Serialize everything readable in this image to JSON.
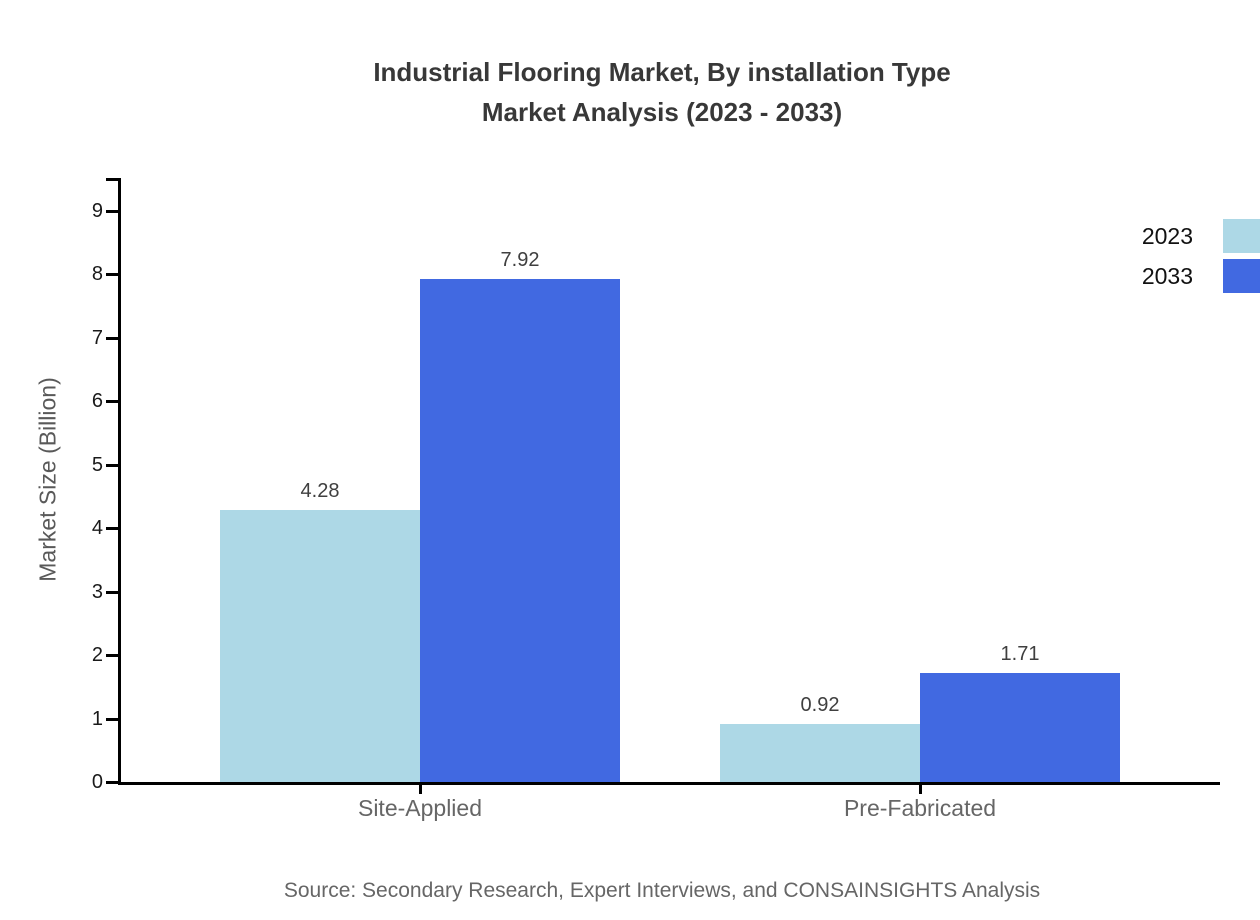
{
  "title": {
    "line1": "Industrial Flooring Market, By installation Type",
    "line2": "Market Analysis (2023 - 2033)"
  },
  "source": "Source: Secondary Research, Expert Interviews, and CONSAINSIGHTS Analysis",
  "chart_data": {
    "type": "bar",
    "title": "Industrial Flooring Market, By installation Type Market Analysis (2023 - 2033)",
    "categories": [
      "Site-Applied",
      "Pre-Fabricated"
    ],
    "series": [
      {
        "name": "2023",
        "values": [
          4.28,
          0.92
        ],
        "color": "#add8e6"
      },
      {
        "name": "2033",
        "values": [
          7.92,
          1.71
        ],
        "color": "#4169e1"
      }
    ],
    "value_labels": [
      "4.28",
      "7.92",
      "0.92",
      "1.71"
    ],
    "xlabel": "",
    "ylabel": "Market Size (Billion)",
    "ylim": [
      0,
      9.5
    ],
    "yticks": [
      0,
      1,
      2,
      3,
      4,
      5,
      6,
      7,
      8,
      9
    ],
    "grid": false,
    "legend_position": "top-right",
    "colors": {
      "series_2023": "#add8e6",
      "series_2033": "#4169e1",
      "axis": "#000000",
      "title_text": "#383838",
      "category_text": "#666666",
      "source_text": "#666666"
    }
  }
}
